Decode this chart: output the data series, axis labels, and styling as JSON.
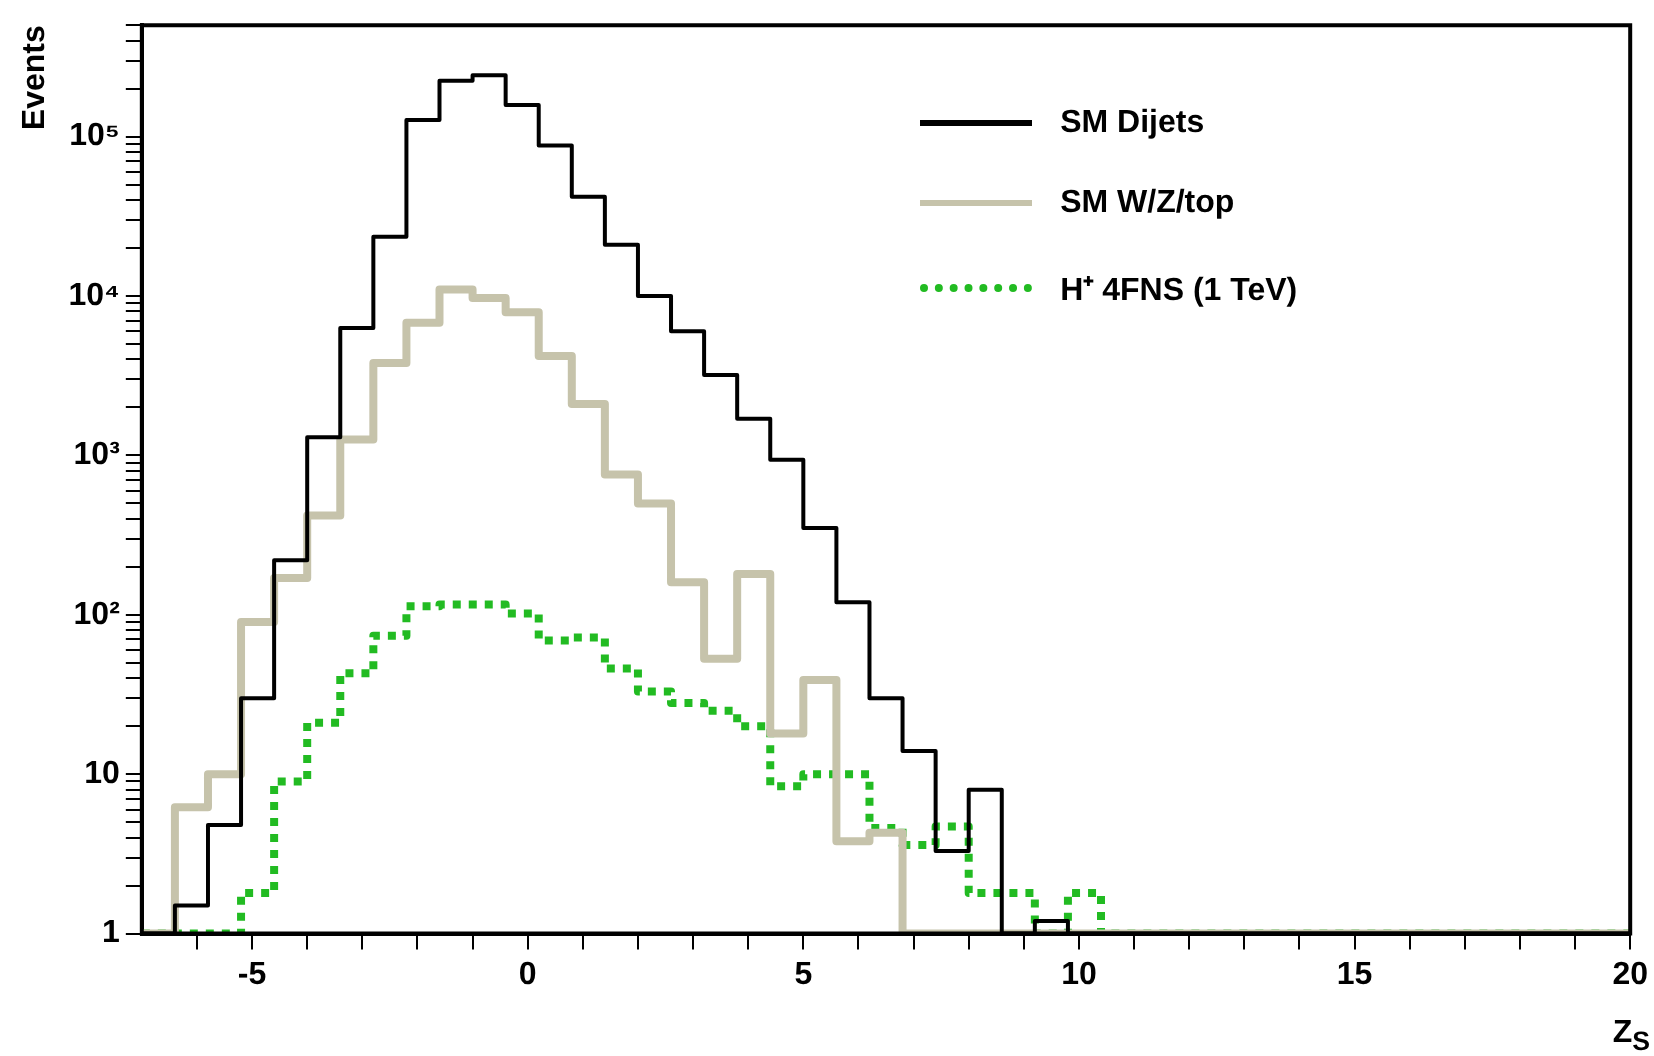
{
  "chart_data": {
    "type": "histogram",
    "ylabel": "Events",
    "xlabel": "Z$_{S}$",
    "bins": [
      -7,
      -6.4,
      -5.8,
      -5.2,
      -4.6,
      -4,
      -3.4,
      -2.8,
      -2.2,
      -1.6,
      -1,
      -0.4,
      0.2,
      0.8,
      1.4,
      2,
      2.6,
      3.2,
      3.8,
      4.4,
      5,
      5.6,
      6.2,
      6.8,
      7.4,
      8,
      8.6,
      9.2,
      9.8,
      10.4,
      11,
      11.6,
      12.2,
      12.8,
      13.4,
      14,
      14.6,
      15.2,
      15.8,
      16.4,
      17,
      17.6,
      18.2,
      18.8,
      19.4,
      20
    ],
    "series": [
      {
        "name": "SM Dijets",
        "color": "#000000",
        "line_style": "solid",
        "values": [
          1,
          1.5,
          4.8,
          30,
          220,
          1300,
          6300,
          23500,
          127000,
          224000,
          243000,
          158000,
          88000,
          42000,
          21000,
          10000,
          6000,
          3200,
          1700,
          940,
          350,
          120,
          30,
          14,
          3.3,
          8,
          1,
          1.2,
          1,
          1,
          1,
          1,
          1,
          1,
          1,
          1,
          1,
          1,
          1,
          1,
          1,
          1,
          1,
          1,
          1
        ]
      },
      {
        "name": "SM W/Z/top",
        "color": "#c6c3ab",
        "line_style": "solid",
        "values": [
          1,
          6.2,
          10,
          90,
          170,
          420,
          1260,
          3800,
          6800,
          11000,
          9700,
          7900,
          4200,
          2100,
          760,
          500,
          160,
          53,
          180,
          18,
          39,
          3.8,
          4.3,
          1,
          1,
          1,
          1,
          1,
          1,
          1,
          1,
          1,
          1,
          1,
          1,
          1,
          1,
          1,
          1,
          1,
          1,
          1,
          1,
          1,
          1
        ]
      },
      {
        "name": "H⁺ 4FNS (1 TeV)",
        "color": "#22bb22",
        "line_style": "dotted",
        "values": [
          1,
          1,
          1,
          1.8,
          9,
          21,
          43,
          74,
          113,
          116,
          116,
          102,
          69,
          72,
          46,
          33,
          28,
          25,
          20,
          8.4,
          10,
          10,
          4.6,
          3.6,
          4.7,
          1.8,
          1.8,
          1,
          1.8,
          1,
          1,
          1,
          1,
          1,
          1,
          1,
          1,
          1,
          1,
          1,
          1,
          1,
          1,
          1,
          1
        ]
      }
    ],
    "log": "y",
    "grid": false,
    "legend": "top right",
    "xlim": [
      -7,
      20
    ],
    "xticks": [
      {
        "value": -6,
        "label": null
      },
      -5,
      {
        "value": -4,
        "label": null
      },
      {
        "value": -3,
        "label": null
      },
      {
        "value": -2,
        "label": null
      },
      {
        "value": -1,
        "label": null
      },
      0,
      {
        "value": 1,
        "label": null
      },
      {
        "value": 2,
        "label": null
      },
      {
        "value": 3,
        "label": null
      },
      {
        "value": 4,
        "label": null
      },
      5,
      {
        "value": 6,
        "label": null
      },
      {
        "value": 7,
        "label": null
      },
      {
        "value": 8,
        "label": null
      },
      {
        "value": 9,
        "label": null
      },
      10,
      {
        "value": 11,
        "label": null
      },
      {
        "value": 12,
        "label": null
      },
      {
        "value": 13,
        "label": null
      },
      {
        "value": 14,
        "label": null
      },
      15,
      {
        "value": 16,
        "label": null
      },
      {
        "value": 17,
        "label": null
      },
      {
        "value": 18,
        "label": null
      },
      {
        "value": 19,
        "label": null
      },
      20
    ],
    "ylim": [
      1,
      500000
    ],
    "yticks": [
      1,
      {
        "value": 2,
        "label": null
      },
      {
        "value": 3,
        "label": null
      },
      {
        "value": 4,
        "label": null
      },
      {
        "value": 5,
        "label": null
      },
      {
        "value": 6,
        "label": null
      },
      {
        "value": 7,
        "label": null
      },
      {
        "value": 8,
        "label": null
      },
      {
        "value": 9,
        "label": null
      },
      10,
      {
        "value": 20,
        "label": null
      },
      {
        "value": 30,
        "label": null
      },
      {
        "value": 40,
        "label": null
      },
      {
        "value": 50,
        "label": null
      },
      {
        "value": 60,
        "label": null
      },
      {
        "value": 70,
        "label": null
      },
      {
        "value": 80,
        "label": null
      },
      {
        "value": 90,
        "label": null
      },
      {
        "value": 100,
        "label": "10²"
      },
      {
        "value": 200,
        "label": null
      },
      {
        "value": 300,
        "label": null
      },
      {
        "value": 400,
        "label": null
      },
      {
        "value": 500,
        "label": null
      },
      {
        "value": 600,
        "label": null
      },
      {
        "value": 700,
        "label": null
      },
      {
        "value": 800,
        "label": null
      },
      {
        "value": 900,
        "label": null
      },
      {
        "value": 1000,
        "label": "10³"
      },
      {
        "value": 2000,
        "label": null
      },
      {
        "value": 3000,
        "label": null
      },
      {
        "value": 4000,
        "label": null
      },
      {
        "value": 5000,
        "label": null
      },
      {
        "value": 6000,
        "label": null
      },
      {
        "value": 7000,
        "label": null
      },
      {
        "value": 8000,
        "label": null
      },
      {
        "value": 9000,
        "label": null
      },
      {
        "value": 10000,
        "label": "10⁴"
      },
      {
        "value": 20000,
        "label": null
      },
      {
        "value": 30000,
        "label": null
      },
      {
        "value": 40000,
        "label": null
      },
      {
        "value": 50000,
        "label": null
      },
      {
        "value": 60000,
        "label": null
      },
      {
        "value": 70000,
        "label": null
      },
      {
        "value": 80000,
        "label": null
      },
      {
        "value": 90000,
        "label": null
      },
      {
        "value": 100000,
        "label": "10⁵"
      },
      {
        "value": 200000,
        "label": null
      },
      {
        "value": 300000,
        "label": null
      },
      {
        "value": 400000,
        "label": null
      },
      {
        "value": 500000,
        "label": null
      }
    ]
  }
}
